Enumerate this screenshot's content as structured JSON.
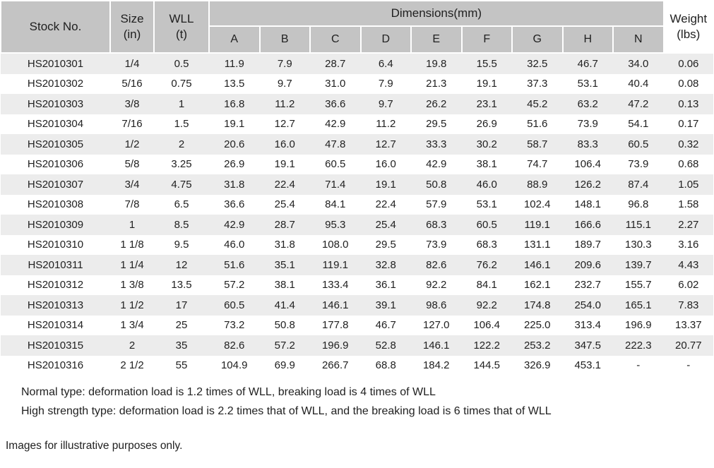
{
  "table": {
    "headers": {
      "stock_no": "Stock No.",
      "size": "Size",
      "size_unit": "(in)",
      "wll": "WLL",
      "wll_unit": "(t)",
      "dimensions": "Dimensions(mm)",
      "dimension_cols": [
        "A",
        "B",
        "C",
        "D",
        "E",
        "F",
        "G",
        "H",
        "N"
      ],
      "weight": "Weight",
      "weight_unit": "(lbs)"
    },
    "rows": [
      [
        "HS2010301",
        "1/4",
        "0.5",
        "11.9",
        "7.9",
        "28.7",
        "6.4",
        "19.8",
        "15.5",
        "32.5",
        "46.7",
        "34.0",
        "0.06"
      ],
      [
        "HS2010302",
        "5/16",
        "0.75",
        "13.5",
        "9.7",
        "31.0",
        "7.9",
        "21.3",
        "19.1",
        "37.3",
        "53.1",
        "40.4",
        "0.08"
      ],
      [
        "HS2010303",
        "3/8",
        "1",
        "16.8",
        "11.2",
        "36.6",
        "9.7",
        "26.2",
        "23.1",
        "45.2",
        "63.2",
        "47.2",
        "0.13"
      ],
      [
        "HS2010304",
        "7/16",
        "1.5",
        "19.1",
        "12.7",
        "42.9",
        "11.2",
        "29.5",
        "26.9",
        "51.6",
        "73.9",
        "54.1",
        "0.17"
      ],
      [
        "HS2010305",
        "1/2",
        "2",
        "20.6",
        "16.0",
        "47.8",
        "12.7",
        "33.3",
        "30.2",
        "58.7",
        "83.3",
        "60.5",
        "0.32"
      ],
      [
        "HS2010306",
        "5/8",
        "3.25",
        "26.9",
        "19.1",
        "60.5",
        "16.0",
        "42.9",
        "38.1",
        "74.7",
        "106.4",
        "73.9",
        "0.68"
      ],
      [
        "HS2010307",
        "3/4",
        "4.75",
        "31.8",
        "22.4",
        "71.4",
        "19.1",
        "50.8",
        "46.0",
        "88.9",
        "126.2",
        "87.4",
        "1.05"
      ],
      [
        "HS2010308",
        "7/8",
        "6.5",
        "36.6",
        "25.4",
        "84.1",
        "22.4",
        "57.9",
        "53.1",
        "102.4",
        "148.1",
        "96.8",
        "1.58"
      ],
      [
        "HS2010309",
        "1",
        "8.5",
        "42.9",
        "28.7",
        "95.3",
        "25.4",
        "68.3",
        "60.5",
        "119.1",
        "166.6",
        "115.1",
        "2.27"
      ],
      [
        "HS2010310",
        "1 1/8",
        "9.5",
        "46.0",
        "31.8",
        "108.0",
        "29.5",
        "73.9",
        "68.3",
        "131.1",
        "189.7",
        "130.3",
        "3.16"
      ],
      [
        "HS2010311",
        "1 1/4",
        "12",
        "51.6",
        "35.1",
        "119.1",
        "32.8",
        "82.6",
        "76.2",
        "146.1",
        "209.6",
        "139.7",
        "4.43"
      ],
      [
        "HS2010312",
        "1 3/8",
        "13.5",
        "57.2",
        "38.1",
        "133.4",
        "36.1",
        "92.2",
        "84.1",
        "162.1",
        "232.7",
        "155.7",
        "6.02"
      ],
      [
        "HS2010313",
        "1 1/2",
        "17",
        "60.5",
        "41.4",
        "146.1",
        "39.1",
        "98.6",
        "92.2",
        "174.8",
        "254.0",
        "165.1",
        "7.83"
      ],
      [
        "HS2010314",
        "1 3/4",
        "25",
        "73.2",
        "50.8",
        "177.8",
        "46.7",
        "127.0",
        "106.4",
        "225.0",
        "313.4",
        "196.9",
        "13.37"
      ],
      [
        "HS2010315",
        "2",
        "35",
        "82.6",
        "57.2",
        "196.9",
        "52.8",
        "146.1",
        "122.2",
        "253.2",
        "347.5",
        "222.3",
        "20.77"
      ],
      [
        "HS2010316",
        "2 1/2",
        "55",
        "104.9",
        "69.9",
        "266.7",
        "68.8",
        "184.2",
        "144.5",
        "326.9",
        "453.1",
        "-",
        "-"
      ]
    ]
  },
  "notes": {
    "normal": "Normal type: deformation load is 1.2 times of WLL, breaking load is 4 times of WLL",
    "high_strength": "High strength type: deformation load is 2.2 times that of WLL, and the breaking load is 6 times that of WLL",
    "disclaimer": "Images for illustrative purposes only."
  },
  "colors": {
    "header_bg": "#c4c4c4",
    "row_alt_bg": "#ececec",
    "row_bg": "#ffffff",
    "grid_line": "#ffffff",
    "text": "#212121"
  }
}
